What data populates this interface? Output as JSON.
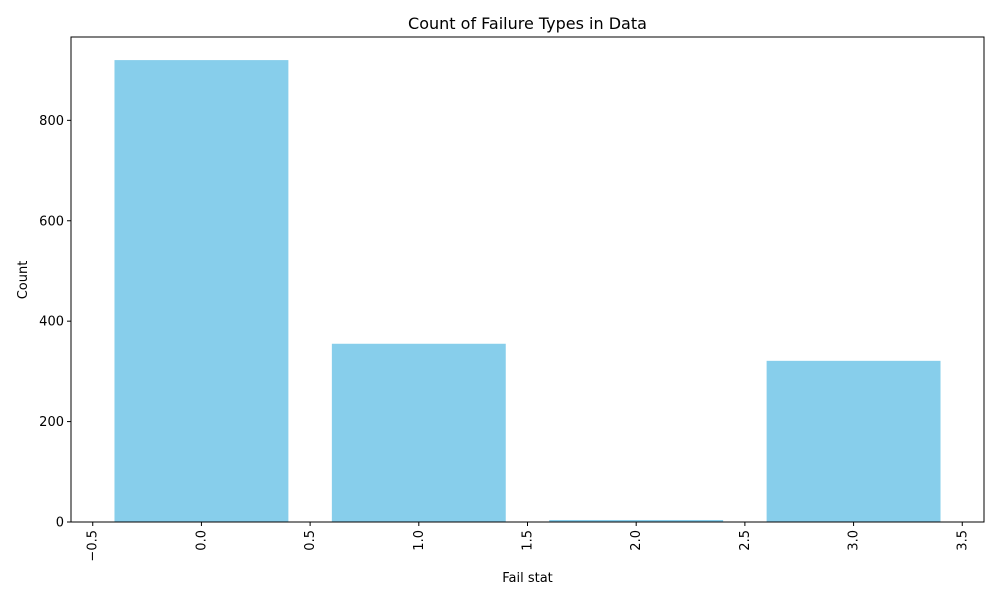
{
  "chart_data": {
    "type": "bar",
    "title": "Count of Failure Types in Data",
    "xlabel": "Fail stat",
    "ylabel": "Count",
    "x": [
      0,
      1,
      2,
      3
    ],
    "values": [
      920,
      355,
      4,
      321
    ],
    "bar_width": 0.8,
    "xlim": [
      -0.6,
      3.6
    ],
    "ylim": [
      0,
      966
    ],
    "xticks": [
      -0.5,
      0.0,
      0.5,
      1.0,
      1.5,
      2.0,
      2.5,
      3.0,
      3.5
    ],
    "xtick_labels": [
      "−0.5",
      "0.0",
      "0.5",
      "1.0",
      "1.5",
      "2.0",
      "2.5",
      "3.0",
      "3.5"
    ],
    "yticks": [
      0,
      200,
      400,
      600,
      800
    ],
    "ytick_labels": [
      "0",
      "200",
      "400",
      "600",
      "800"
    ],
    "grid": false,
    "colors": {
      "bar": "#87ceeb",
      "axis": "#000000"
    }
  }
}
